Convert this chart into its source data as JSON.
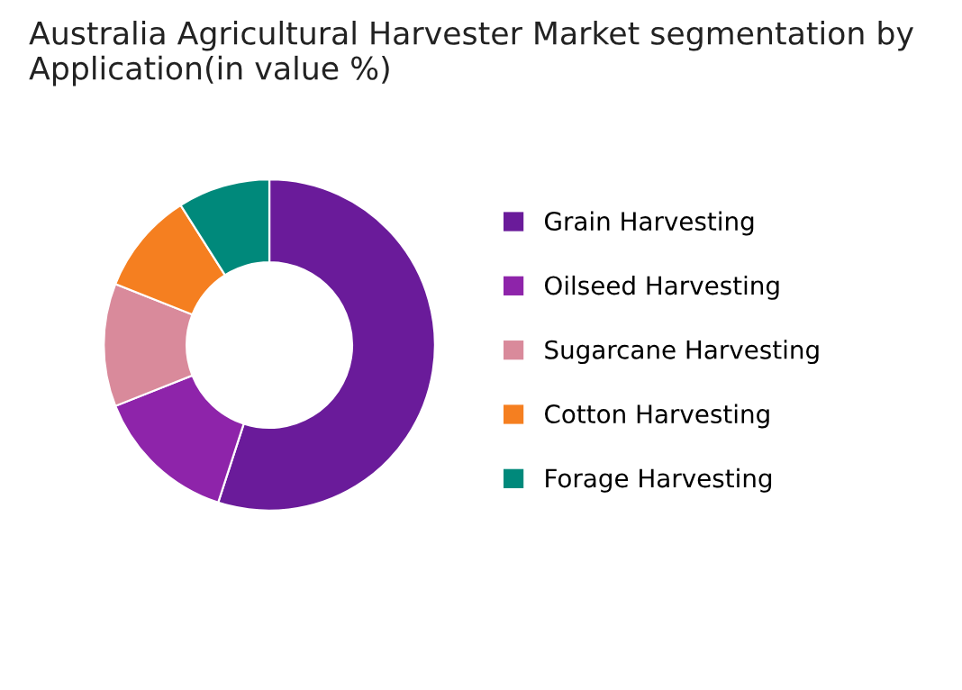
{
  "chart_data": {
    "type": "donut",
    "title": "Australia Agricultural Harvester Market segmentation by Application(in value %)",
    "categories": [
      "Grain Harvesting",
      "Oilseed Harvesting",
      "Sugarcane Harvesting",
      "Cotton Harvesting",
      "Forage Harvesting"
    ],
    "values": [
      55,
      14,
      12,
      10,
      9
    ],
    "colors": [
      "#6a1b9a",
      "#8e24aa",
      "#d98a9b",
      "#f57f20",
      "#00897b"
    ],
    "legend": "right"
  }
}
